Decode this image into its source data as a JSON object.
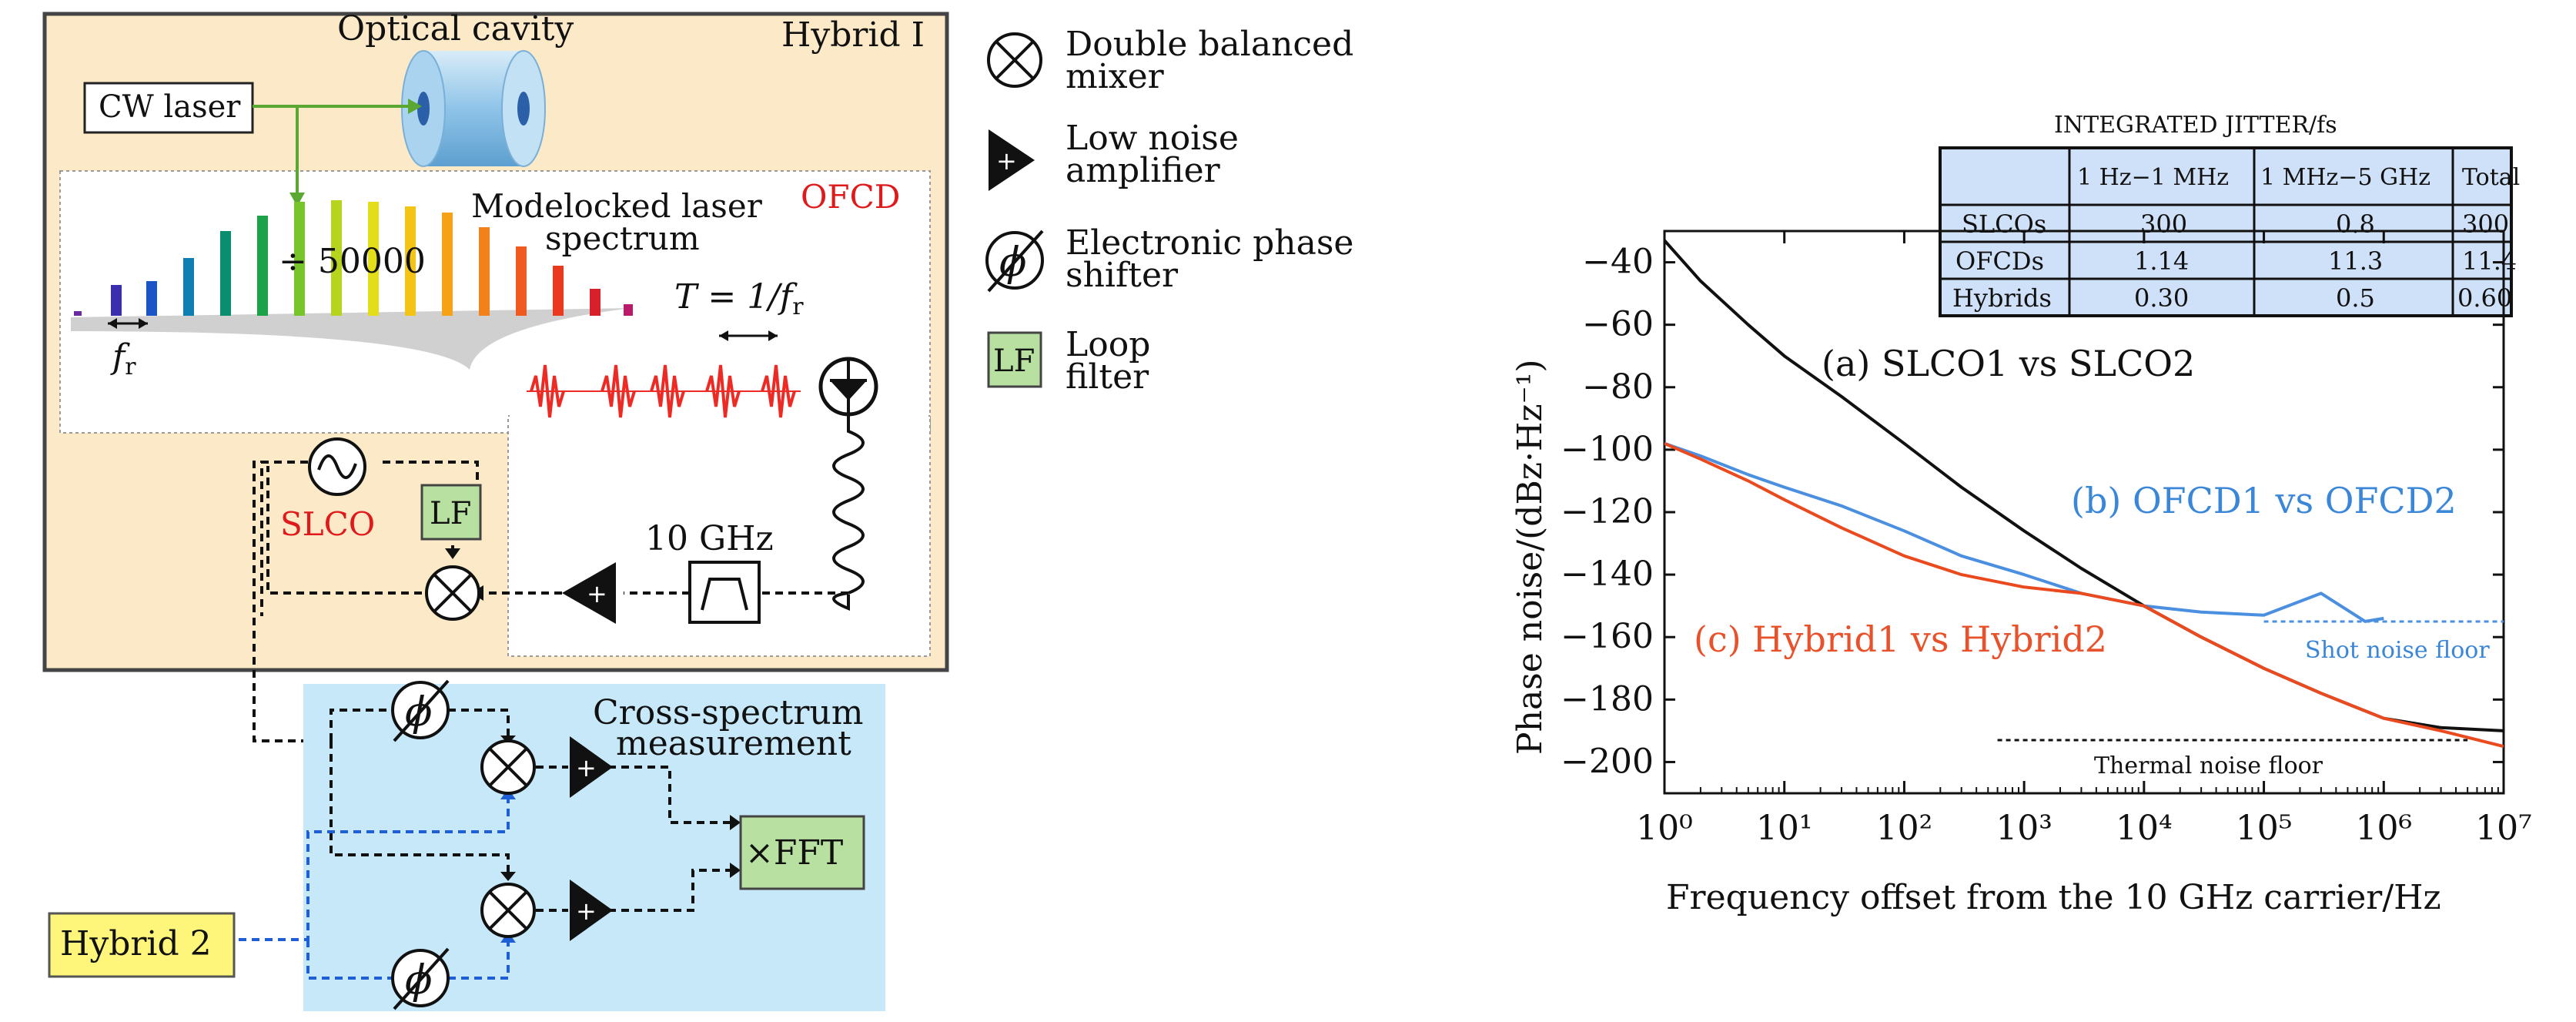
{
  "schematic": {
    "hybrid1_label": "Hybrid I",
    "optical_cavity_label": "Optical cavity",
    "cw_laser_label": "CW laser",
    "ofcd_label": "OFCD",
    "modelocked_label_line1": "Modelocked laser",
    "modelocked_label_line2": "spectrum",
    "divider_label": "÷ 50000",
    "fr_label": "f",
    "fr_subscript": "r",
    "period_label": "T = 1/f",
    "period_subscript": "r",
    "slco_label": "SLCO",
    "lf_label": "LF",
    "freq_label": "10 GHz",
    "cross_spectrum_line1": "Cross-spectrum",
    "cross_spectrum_line2": "measurement",
    "fft_label": "×FFT",
    "hybrid2_label": "Hybrid 2"
  },
  "legend": {
    "items": [
      {
        "icon": "double-balanced-mixer-icon",
        "line1": "Double balanced",
        "line2": "mixer"
      },
      {
        "icon": "low-noise-amplifier-icon",
        "line1": "Low noise",
        "line2": "amplifier"
      },
      {
        "icon": "electronic-phase-shifter-icon",
        "line1": "Electronic phase",
        "line2": "shifter"
      },
      {
        "icon": "loop-filter-icon",
        "icon_text": "LF",
        "line1": "Loop",
        "line2": "filter"
      }
    ]
  },
  "jitter_table": {
    "title": "INTEGRATED JITTER/fs",
    "columns": [
      "",
      "1 Hz−1 MHz",
      "1 MHz−5 GHz",
      "Total"
    ],
    "rows": [
      [
        "SLCOs",
        "300",
        "0.8",
        "300"
      ],
      [
        "OFCDs",
        "1.14",
        "11.3",
        "11.4"
      ],
      [
        "Hybrids",
        "0.30",
        "0.5",
        "0.60"
      ]
    ]
  },
  "chart_data": {
    "type": "line",
    "xlabel": "Frequency offset from the 10 GHz carrier/Hz",
    "ylabel": "Phase noise/(dBz·Hz⁻¹)",
    "xscale": "log",
    "xlim": [
      1,
      10000000
    ],
    "ylim": [
      -210,
      -30
    ],
    "yticks": [
      -40,
      -60,
      -80,
      -100,
      -120,
      -140,
      -160,
      -180,
      -200
    ],
    "xtick_labels": [
      "10⁰",
      "10¹",
      "10²",
      "10³",
      "10⁴",
      "10⁵",
      "10⁶",
      "10⁷"
    ],
    "series": [
      {
        "name": "(a) SLCO1 vs SLCO2",
        "color": "#111111",
        "x": [
          1,
          2,
          5,
          10,
          30,
          100,
          300,
          1000,
          3000,
          10000,
          30000,
          100000,
          300000,
          1000000,
          3000000,
          10000000
        ],
        "y": [
          -33,
          -46,
          -60,
          -70,
          -83,
          -98,
          -112,
          -126,
          -138,
          -150,
          -160,
          -170,
          -178,
          -186,
          -189,
          -190
        ]
      },
      {
        "name": "(b) OFCD1 vs OFCD2",
        "color": "#4a8fe0",
        "x": [
          1,
          2,
          5,
          10,
          30,
          100,
          300,
          1000,
          3000,
          10000,
          30000,
          100000,
          300000,
          700000,
          1000000
        ],
        "y": [
          -98,
          -102,
          -108,
          -112,
          -118,
          -126,
          -134,
          -140,
          -146,
          -150,
          -152,
          -153,
          -146,
          -155,
          -154
        ]
      },
      {
        "name": "(c) Hybrid1 vs Hybrid2",
        "color": "#ea4a1e",
        "x": [
          1,
          2,
          5,
          10,
          30,
          100,
          300,
          1000,
          3000,
          10000,
          30000,
          100000,
          300000,
          1000000,
          3000000,
          10000000
        ],
        "y": [
          -98,
          -103,
          -110,
          -116,
          -125,
          -134,
          -140,
          -144,
          -146,
          -150,
          -160,
          -170,
          -178,
          -186,
          -190,
          -195
        ]
      }
    ],
    "annotations": [
      {
        "text": "Shot noise floor",
        "y": -155,
        "color": "#4a8fe0"
      },
      {
        "text": "Thermal noise floor",
        "y": -193,
        "color": "#111111"
      }
    ]
  }
}
